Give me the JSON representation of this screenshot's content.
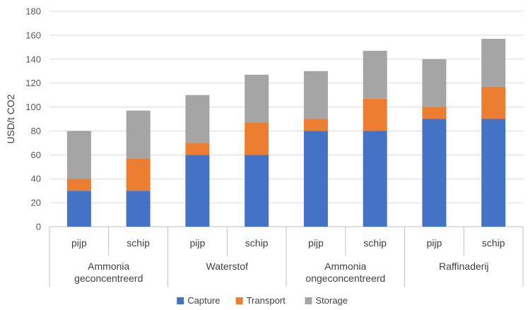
{
  "chart_data": {
    "type": "bar",
    "stacked": true,
    "ylabel": "USD/t CO2",
    "ylim": [
      0,
      180
    ],
    "yticks": [
      0,
      20,
      40,
      60,
      80,
      100,
      120,
      140,
      160,
      180
    ],
    "grid": true,
    "legend_position": "bottom",
    "categories": [
      "pijp",
      "schip",
      "pijp",
      "schip",
      "pijp",
      "schip",
      "pijp",
      "schip"
    ],
    "groups": [
      {
        "label_lines": [
          "Ammonia",
          "geconcentreerd"
        ],
        "span": 2
      },
      {
        "label_lines": [
          "Waterstof"
        ],
        "span": 2
      },
      {
        "label_lines": [
          "Ammonia",
          "ongeconcentreerd"
        ],
        "span": 2
      },
      {
        "label_lines": [
          "Raffinaderij"
        ],
        "span": 2
      }
    ],
    "series": [
      {
        "name": "Capture",
        "color": "#4472C4",
        "values": [
          30,
          30,
          60,
          60,
          80,
          80,
          90,
          90
        ]
      },
      {
        "name": "Transport",
        "color": "#ED7D31",
        "values": [
          10,
          27,
          10,
          27,
          10,
          27,
          10,
          27
        ]
      },
      {
        "name": "Storage",
        "color": "#A5A5A5",
        "values": [
          40,
          40,
          40,
          40,
          40,
          40,
          40,
          40
        ]
      }
    ]
  }
}
